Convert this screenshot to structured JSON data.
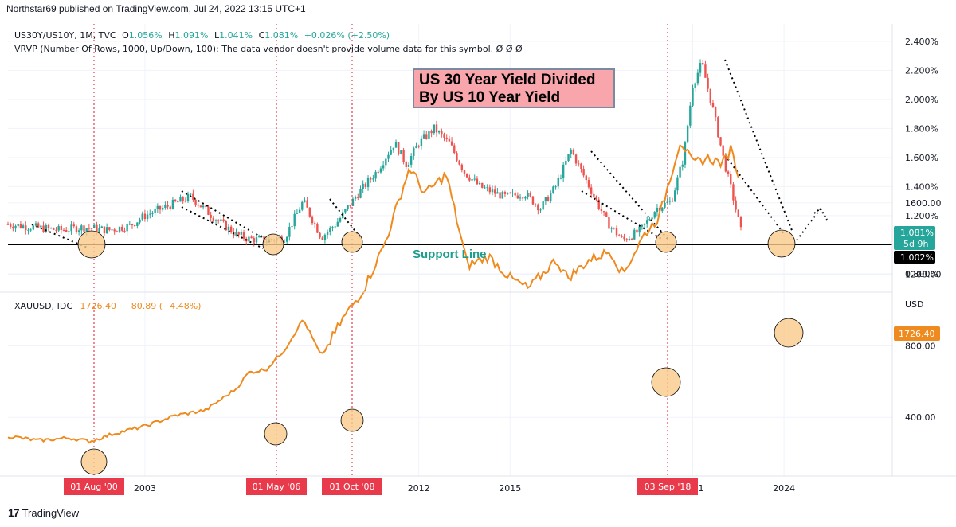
{
  "header": {
    "published": "Northstar69 published on TradingView.com, Jul 24, 2022 13:15 UTC+1"
  },
  "legend_top": {
    "symbol": "US30Y/US10Y, 1M, TVC",
    "o_label": "O",
    "o_value": "1.056%",
    "h_label": "H",
    "h_value": "1.091%",
    "l_label": "L",
    "l_value": "1.041%",
    "c_label": "C",
    "c_value": "1.081%",
    "change": "+0.026% (+2.50%)",
    "vrvp": "VRVP (Number Of Rows, 1000, Up/Down, 100): The data vendor doesn't provide volume data for this symbol.  Ø Ø Ø"
  },
  "legend_bottom": {
    "symbol": "XAUUSD, IDC",
    "value": "1726.40",
    "change": "−80.89 (−4.48%)"
  },
  "annotations": {
    "title_line1": "US 30 Year Yield Divided",
    "title_line2": "By US 10 Year Yield",
    "support": "Support Line"
  },
  "footer": {
    "brand": "TradingView"
  },
  "colors": {
    "up": "#26a69a",
    "down": "#ef5350",
    "gold": "#ef8a1e",
    "marker": "#e83a4b",
    "circle": "#f9c98a"
  },
  "chart_data": [
    {
      "type": "candlestick",
      "ylim": [
        0.7,
        2.5
      ],
      "y_ticks": [
        "2.400%",
        "2.200%",
        "2.000%",
        "1.800%",
        "1.600%",
        "1.400%",
        "1.200%",
        "0.800%"
      ],
      "price_labels": [
        "1.081%",
        "5d 9h",
        "1.002%"
      ],
      "support_level": 1.002,
      "trend": [
        [
          1998.5,
          1.14
        ],
        [
          2000.2,
          1.1
        ],
        [
          2001.0,
          1.12
        ],
        [
          2001.8,
          1.1
        ],
        [
          2002.5,
          1.13
        ],
        [
          2003.0,
          1.2
        ],
        [
          2003.8,
          1.27
        ],
        [
          2004.5,
          1.33
        ],
        [
          2005.2,
          1.2
        ],
        [
          2006.0,
          1.07
        ],
        [
          2006.4,
          1.04
        ],
        [
          2007.0,
          1.03
        ],
        [
          2007.6,
          1.05
        ],
        [
          2008.2,
          1.3
        ],
        [
          2008.8,
          1.05
        ],
        [
          2009.3,
          1.15
        ],
        [
          2010.0,
          1.35
        ],
        [
          2010.6,
          1.5
        ],
        [
          2011.2,
          1.7
        ],
        [
          2011.6,
          1.55
        ],
        [
          2012.0,
          1.7
        ],
        [
          2012.5,
          1.8
        ],
        [
          2013.0,
          1.7
        ],
        [
          2013.5,
          1.5
        ],
        [
          2014.0,
          1.4
        ],
        [
          2014.8,
          1.33
        ],
        [
          2015.5,
          1.35
        ],
        [
          2016.0,
          1.25
        ],
        [
          2016.5,
          1.4
        ],
        [
          2017.0,
          1.65
        ],
        [
          2017.6,
          1.4
        ],
        [
          2018.2,
          1.15
        ],
        [
          2018.7,
          1.03
        ],
        [
          2019.3,
          1.1
        ],
        [
          2019.8,
          1.25
        ],
        [
          2020.3,
          1.3
        ],
        [
          2020.7,
          1.6
        ],
        [
          2021.0,
          2.1
        ],
        [
          2021.3,
          2.25
        ],
        [
          2021.7,
          1.9
        ],
        [
          2022.0,
          1.6
        ],
        [
          2022.3,
          1.35
        ],
        [
          2022.6,
          1.08
        ]
      ]
    },
    {
      "type": "line",
      "name": "XAUUSD",
      "ylim": [
        200,
        2000
      ],
      "y_ticks": [
        "USD",
        "1600.00",
        "1200.00",
        "800.00",
        "400.00"
      ],
      "price_label": "1726.40",
      "points": [
        [
          1998.5,
          295
        ],
        [
          1999.5,
          270
        ],
        [
          2000.5,
          285
        ],
        [
          2001.2,
          265
        ],
        [
          2002.0,
          310
        ],
        [
          2003.0,
          350
        ],
        [
          2004.0,
          410
        ],
        [
          2005.0,
          440
        ],
        [
          2006.0,
          560
        ],
        [
          2006.4,
          650
        ],
        [
          2007.0,
          670
        ],
        [
          2007.6,
          780
        ],
        [
          2008.2,
          950
        ],
        [
          2008.8,
          740
        ],
        [
          2009.5,
          950
        ],
        [
          2010.2,
          1120
        ],
        [
          2010.9,
          1380
        ],
        [
          2011.7,
          1800
        ],
        [
          2012.2,
          1650
        ],
        [
          2012.9,
          1760
        ],
        [
          2013.6,
          1250
        ],
        [
          2014.3,
          1300
        ],
        [
          2015.0,
          1180
        ],
        [
          2015.6,
          1120
        ],
        [
          2016.5,
          1280
        ],
        [
          2016.9,
          1180
        ],
        [
          2017.6,
          1280
        ],
        [
          2018.3,
          1330
        ],
        [
          2018.7,
          1200
        ],
        [
          2019.4,
          1420
        ],
        [
          2019.9,
          1520
        ],
        [
          2020.6,
          1950
        ],
        [
          2021.0,
          1820
        ],
        [
          2021.5,
          1850
        ],
        [
          2022.0,
          1820
        ],
        [
          2022.3,
          1920
        ],
        [
          2022.5,
          1726
        ]
      ]
    }
  ],
  "x_axis": {
    "ticks": [
      "2003",
      "2012",
      "2015",
      "2021",
      "2024"
    ],
    "markers": [
      "01 Aug '00",
      "01 May '06",
      "01 Oct '08",
      "03 Sep '18"
    ]
  }
}
